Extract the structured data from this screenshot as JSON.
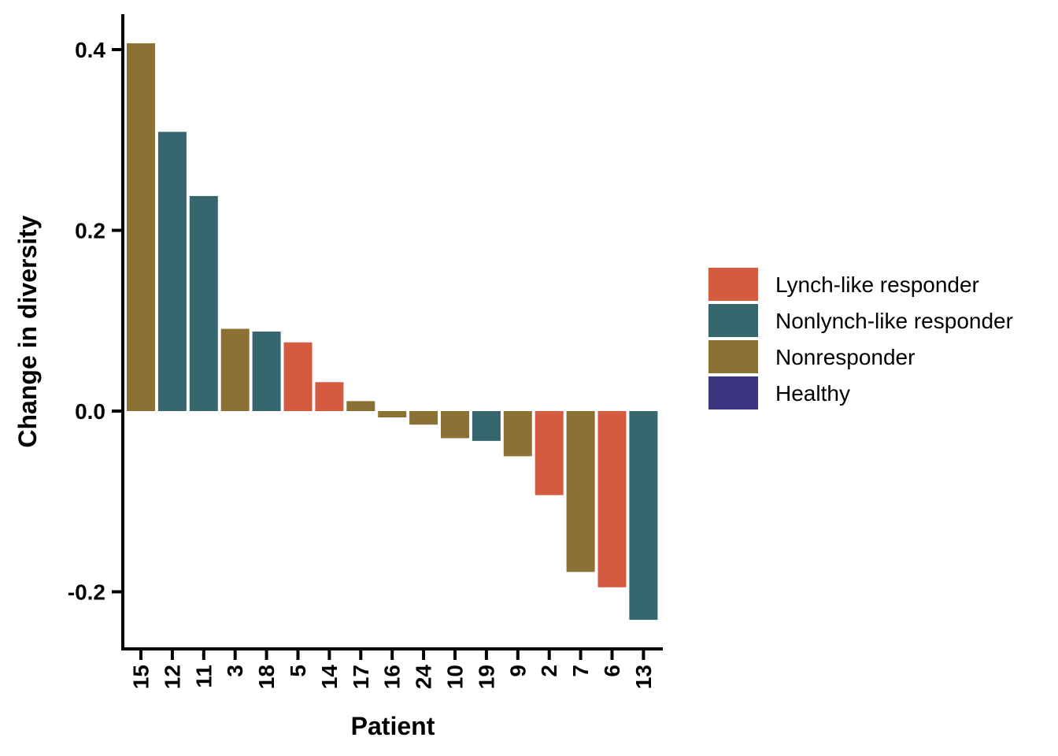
{
  "chart_data": {
    "type": "bar",
    "title": "",
    "xlabel": "Patient",
    "ylabel": "Change in diversity",
    "ylim": [
      -0.26,
      0.44
    ],
    "yticks": [
      -0.2,
      0.0,
      0.2,
      0.4
    ],
    "ytick_labels": [
      "-0.2",
      "0.0",
      "0.2",
      "0.4"
    ],
    "grid": false,
    "legend_position": "right",
    "categories": [
      "15",
      "12",
      "11",
      "3",
      "18",
      "5",
      "14",
      "17",
      "16",
      "24",
      "10",
      "19",
      "9",
      "2",
      "7",
      "6",
      "13"
    ],
    "values": [
      0.407,
      0.309,
      0.238,
      0.091,
      0.088,
      0.076,
      0.032,
      0.011,
      -0.007,
      -0.015,
      -0.03,
      -0.033,
      -0.05,
      -0.093,
      -0.178,
      -0.195,
      -0.231
    ],
    "groups": [
      "Nonresponder",
      "Nonlynch-like responder",
      "Nonlynch-like responder",
      "Nonresponder",
      "Nonlynch-like responder",
      "Lynch-like responder",
      "Lynch-like responder",
      "Nonresponder",
      "Nonresponder",
      "Nonresponder",
      "Nonresponder",
      "Nonlynch-like responder",
      "Nonresponder",
      "Lynch-like responder",
      "Nonresponder",
      "Lynch-like responder",
      "Nonlynch-like responder"
    ],
    "legend": [
      {
        "label": "Lynch-like responder",
        "color": "#D45B40"
      },
      {
        "label": "Nonlynch-like responder",
        "color": "#36666E"
      },
      {
        "label": "Nonresponder",
        "color": "#8B7134"
      },
      {
        "label": "Healthy",
        "color": "#3C3680"
      }
    ]
  }
}
